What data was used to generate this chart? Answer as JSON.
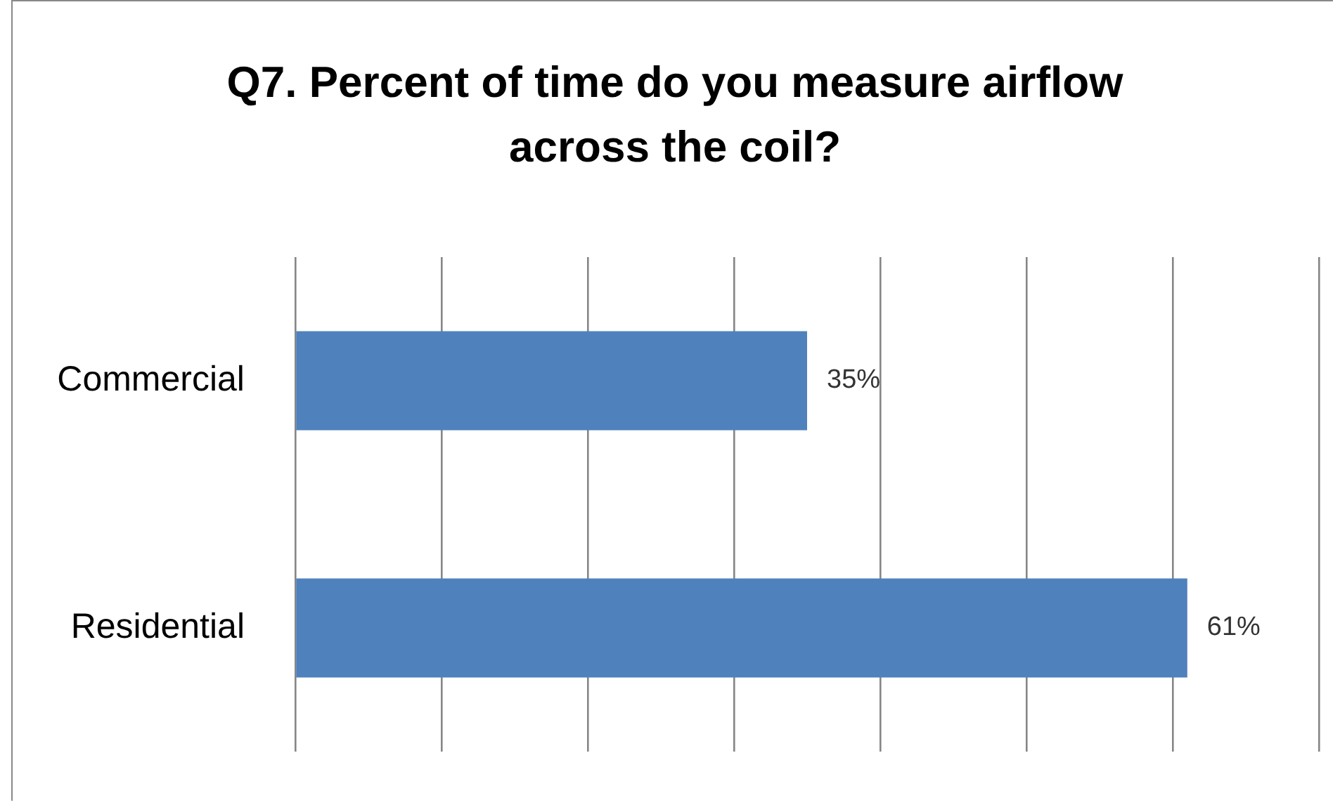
{
  "chart_data": {
    "type": "bar",
    "orientation": "horizontal",
    "title": "Q7. Percent of time do you measure airflow across the coil?",
    "categories": [
      "Commercial",
      "Residential"
    ],
    "values": [
      35,
      61
    ],
    "color": "#4f81bd",
    "value_labels": [
      "35%",
      "61%"
    ],
    "xlim": [
      0,
      70
    ],
    "xticks": [
      {
        "value": 0,
        "label": null
      },
      {
        "value": 10,
        "label": null
      },
      {
        "value": 20,
        "label": null
      },
      {
        "value": 30,
        "label": null
      },
      {
        "value": 40,
        "label": null
      },
      {
        "value": 50,
        "label": null
      },
      {
        "value": 60,
        "label": null
      },
      {
        "value": 70,
        "label": null
      }
    ],
    "grid": "x",
    "tick_labels": "y",
    "legend": false
  }
}
